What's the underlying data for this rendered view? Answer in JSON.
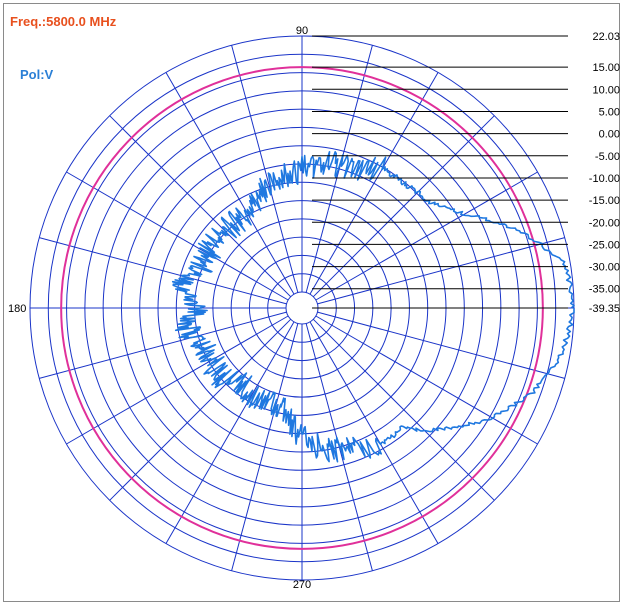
{
  "header": {
    "freq_label": "Freq.:5800.0 MHz",
    "pol_label": "Pol:V",
    "freq_color": "#e8501e",
    "pol_color": "#2a7fd6"
  },
  "chart_data": {
    "type": "polar",
    "angle_labels": {
      "top": "90",
      "left": "180",
      "bottom": "270"
    },
    "radial_labels": [
      "22.03",
      "15.00",
      "10.00",
      "5.00",
      "0.00",
      "-5.00",
      "-10.00",
      "-15.00",
      "-20.00",
      "-25.00",
      "-30.00",
      "-35.00",
      "-39.35"
    ],
    "radial_range": [
      -39.35,
      22.03
    ],
    "grid": true,
    "reference_circle_value": 15.0,
    "colors": {
      "grid": "#1a34c8",
      "reference": "#e0309a",
      "pattern": "#1f78e0"
    },
    "series": [
      {
        "values_note": "gain in dBi versus azimuth angle (deg)",
        "angles": [
          0,
          10,
          20,
          30,
          40,
          50,
          60,
          70,
          80,
          90,
          100,
          110,
          120,
          130,
          140,
          150,
          160,
          170,
          180,
          190,
          200,
          210,
          220,
          230,
          240,
          250,
          260,
          270,
          280,
          290,
          300,
          310,
          320,
          330,
          340,
          350
        ],
        "gain": [
          22.0,
          20.5,
          12.0,
          3.0,
          -2.0,
          -3.0,
          -3.0,
          -6.0,
          -6.0,
          -8.0,
          -10.0,
          -12.0,
          -15.0,
          -15.0,
          -14.0,
          -15.0,
          -15.0,
          -12.0,
          -16.0,
          -13.0,
          -15.0,
          -16.0,
          -15.0,
          -18.0,
          -16.0,
          -18.0,
          -16.0,
          -10.0,
          -7.0,
          -6.0,
          -4.0,
          -4.0,
          3.0,
          10.0,
          16.0,
          20.0
        ]
      }
    ]
  }
}
